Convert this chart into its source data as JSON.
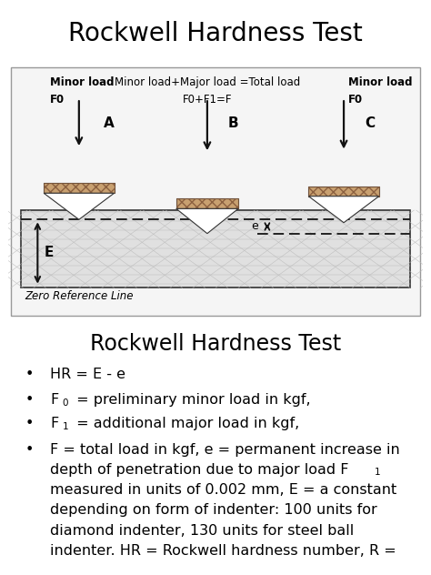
{
  "title1": "Rockwell Hardness Test",
  "title2": "Rockwell Hardness Test",
  "indenter_fill": "#c8a070",
  "mesh_color": "#bbbbbb",
  "arrow_color": "#111111",
  "text_minor_load_left": "Minor load\nF0",
  "text_total_load": "Minor load+Major load =Total load\nF0+F1=F",
  "text_minor_load_right": "Minor load\nF0",
  "text_zero_ref": "Zero Reference Line",
  "bg_color": "#ffffff",
  "diag_bg": "#f5f5f5",
  "mat_color": "#e0e0e0",
  "font_size_title1": 20,
  "font_size_title2": 17,
  "font_size_body": 11.5,
  "font_size_small": 8.5,
  "font_size_label": 11
}
